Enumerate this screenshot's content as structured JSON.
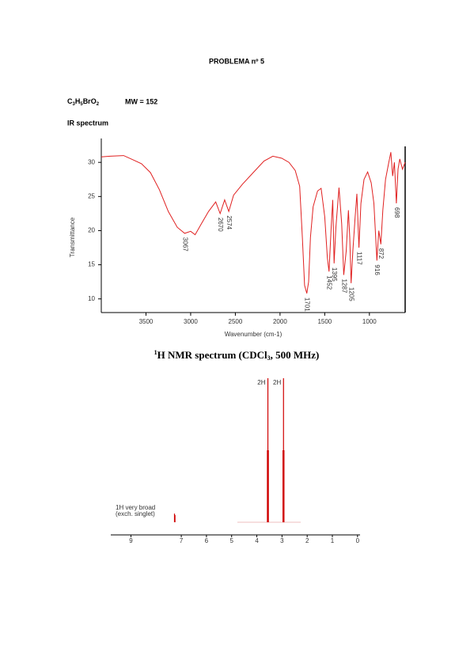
{
  "header": {
    "title": "PROBLEMA nº 5",
    "formula": [
      "C",
      "3",
      "H",
      "5",
      "BrO",
      "2"
    ],
    "mw": "MW = 152"
  },
  "chart_data": [
    {
      "type": "line",
      "title": "IR spectrum",
      "x_label": "Wavenumber (cm-1)",
      "y_label": "Transmittance",
      "color": "#e02020",
      "x": [
        4000,
        3900,
        3750,
        3650,
        3550,
        3450,
        3350,
        3250,
        3150,
        3067,
        3000,
        2950,
        2880,
        2800,
        2720,
        2670,
        2620,
        2574,
        2520,
        2420,
        2300,
        2180,
        2080,
        1980,
        1900,
        1830,
        1780,
        1750,
        1725,
        1701,
        1680,
        1660,
        1630,
        1580,
        1540,
        1500,
        1470,
        1452,
        1430,
        1410,
        1395,
        1375,
        1340,
        1310,
        1287,
        1260,
        1235,
        1220,
        1205,
        1185,
        1160,
        1140,
        1117,
        1095,
        1060,
        1020,
        980,
        950,
        916,
        895,
        872,
        850,
        820,
        790,
        760,
        740,
        720,
        698,
        680,
        660,
        630,
        600
      ],
      "values": [
        30.8,
        30.9,
        31.0,
        30.4,
        29.8,
        28.5,
        26,
        22.8,
        20.5,
        19.6,
        19.9,
        19.4,
        21,
        22.8,
        24.2,
        22.5,
        24.5,
        22.8,
        25.2,
        26.8,
        28.5,
        30.2,
        30.9,
        30.6,
        30.0,
        28.8,
        26.5,
        19,
        12,
        10.8,
        12.5,
        19,
        23.5,
        25.8,
        26.2,
        22,
        16,
        14.0,
        20,
        24.5,
        15.2,
        20.5,
        26.3,
        21,
        13.5,
        17,
        23,
        19,
        12.3,
        17,
        22,
        25.4,
        17.5,
        24,
        27.5,
        28.6,
        27,
        24,
        15.6,
        20,
        18.0,
        23,
        27.5,
        29.5,
        31.5,
        28,
        30,
        24,
        29,
        30.5,
        29,
        30
      ],
      "peaks": [
        3067,
        2670,
        2574,
        1701,
        1452,
        1395,
        1287,
        1205,
        1117,
        916,
        872,
        698
      ],
      "xlim": [
        4000,
        600
      ],
      "ylim": [
        8,
        33.5
      ],
      "xticks": [
        3500,
        3000,
        2500,
        2000,
        1500,
        1000
      ],
      "yticks": [
        30,
        25,
        20,
        15,
        10
      ]
    },
    {
      "type": "stick",
      "title_parts": [
        "1",
        "H NMR spectrum (CDCl",
        "3",
        ", 500 MHz)"
      ],
      "color": "#d00000",
      "x": [
        7.27,
        7.25,
        3.58,
        3.56,
        3.54,
        2.96,
        2.94,
        2.92
      ],
      "values": [
        0.06,
        0.05,
        0.5,
        1.0,
        0.5,
        0.5,
        1.0,
        0.5
      ],
      "multiplets": [
        {
          "center": 3.56,
          "label": "2H"
        },
        {
          "center": 2.94,
          "label": "2H"
        }
      ],
      "annotation": [
        "1H very broad",
        "(exch. singlet)"
      ],
      "xlim": [
        9.8,
        -0.1
      ],
      "ylim": [
        0,
        1
      ],
      "xticks": [
        9,
        7,
        6,
        5,
        4,
        3,
        2,
        1,
        0
      ]
    }
  ]
}
